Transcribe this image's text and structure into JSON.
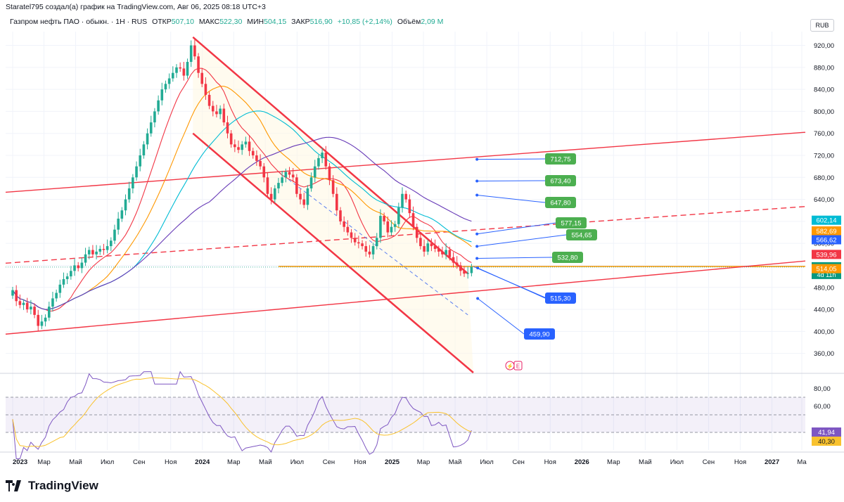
{
  "header": {
    "author": "Staratel795 создал(а) график на TradingView.com, Авг 06, 2025 08:18 UTC+3"
  },
  "info": {
    "symbol": "Газпром нефть ПАО · обыкн. · 1Н · RUS",
    "open_label": "ОТКР",
    "open": "507,10",
    "high_label": "МАКС",
    "high": "522,30",
    "low_label": "МИН",
    "low": "504,15",
    "close_label": "ЗАКР",
    "close": "516,90",
    "change": "+10,85 (+2,14%)",
    "volume_label": "Объём",
    "volume": "2,09 M"
  },
  "currency": "RUB",
  "brand": {
    "name": "TradingView"
  },
  "colors": {
    "up": "#22ab94",
    "down": "#f23645",
    "channel": "#f23645",
    "ma_red": "#f23645",
    "ma_orange": "#ff9800",
    "ma_cyan": "#00bcd4",
    "ma_blue": "#2962ff",
    "ma_purple": "#673ab7",
    "rsi": "#7e57c2",
    "rsi_ma": "#f9c22e",
    "target_green": "#4caf50",
    "target_blue": "#2962ff",
    "price_tag": "#089981"
  },
  "chart_data": {
    "type": "candlestick",
    "title": "Газпром нефть ПАО · обыкн. · 1Н · RUS",
    "y_range": [
      325,
      945
    ],
    "y_ticks": [
      "920,00",
      "880,00",
      "840,00",
      "800,00",
      "760,00",
      "720,00",
      "680,00",
      "640,00",
      "600,00",
      "560,00",
      "520,00",
      "480,00",
      "440,00",
      "400,00",
      "360,00"
    ],
    "y_tick_values": [
      920,
      880,
      840,
      800,
      760,
      720,
      680,
      640,
      600,
      560,
      520,
      480,
      440,
      400,
      360
    ],
    "x_labels": [
      "2023",
      "Мар",
      "Май",
      "Июл",
      "Сен",
      "Ноя",
      "2024",
      "Мар",
      "Май",
      "Июл",
      "Сен",
      "Ноя",
      "2025",
      "Мар",
      "Май",
      "Июл",
      "Сен",
      "Ноя",
      "2026",
      "Мар",
      "Май",
      "Июл",
      "Сен",
      "Ноя",
      "2027",
      "Ма"
    ],
    "x_label_bold": [
      "2023",
      "2024",
      "2025",
      "2026",
      "2027"
    ],
    "x_label_weeks": [
      0,
      8.6,
      17.3,
      26,
      34.7,
      43.4,
      52.1,
      60.7,
      69.4,
      78.1,
      86.8,
      95.4,
      104.2,
      112.8,
      121.5,
      130.2,
      138.9,
      147.6,
      156.3,
      165,
      173.7,
      182.4,
      191.1,
      199.8,
      208.5,
      216.7
    ],
    "price_levels": [
      {
        "label": "602,14",
        "value": 602.14,
        "color": "#00bcd4"
      },
      {
        "label": "582,69",
        "value": 582.69,
        "color": "#ff9800"
      },
      {
        "label": "566,62",
        "value": 566.62,
        "color": "#2962ff"
      },
      {
        "label": "539,96",
        "value": 539.96,
        "color": "#f23645"
      },
      {
        "label": "516,90",
        "value": 516.9,
        "color": "#089981",
        "sub": "4d 11h"
      },
      {
        "label": "514,05",
        "value": 514.05,
        "color": "#ff9800"
      }
    ],
    "targets": [
      {
        "label": "712,75",
        "value": 712.75,
        "kind": "green"
      },
      {
        "label": "673,40",
        "value": 673.4,
        "kind": "green"
      },
      {
        "label": "647,80",
        "value": 647.8,
        "kind": "green"
      },
      {
        "label": "577,15",
        "value": 577.15,
        "kind": "green"
      },
      {
        "label": "554,65",
        "value": 554.65,
        "kind": "green"
      },
      {
        "label": "532,80",
        "value": 532.8,
        "kind": "green"
      },
      {
        "label": "515,30",
        "value": 515.3,
        "kind": "blue"
      },
      {
        "label": "459,90",
        "value": 459.9,
        "kind": "blue"
      }
    ],
    "weekly_close": [
      475,
      455,
      448,
      452,
      440,
      445,
      430,
      410,
      418,
      425,
      445,
      460,
      470,
      485,
      495,
      500,
      510,
      520,
      515,
      525,
      540,
      548,
      540,
      545,
      550,
      548,
      555,
      565,
      585,
      605,
      620,
      640,
      660,
      680,
      700,
      720,
      740,
      760,
      780,
      800,
      820,
      840,
      850,
      860,
      870,
      880,
      878,
      865,
      890,
      920,
      900,
      870,
      850,
      830,
      810,
      800,
      795,
      805,
      780,
      760,
      740,
      735,
      730,
      740,
      745,
      728,
      720,
      710,
      700,
      680,
      650,
      640,
      660,
      670,
      680,
      690,
      685,
      680,
      650,
      640,
      630,
      660,
      680,
      700,
      715,
      725,
      700,
      675,
      650,
      620,
      600,
      590,
      580,
      570,
      562,
      560,
      555,
      545,
      540,
      555,
      570,
      610,
      600,
      580,
      590,
      595,
      625,
      650,
      640,
      615,
      590,
      570,
      555,
      545,
      560,
      555,
      550,
      545,
      540,
      548,
      535,
      525,
      520,
      510,
      505,
      506,
      516.9
    ],
    "rsi": {
      "range": [
        10,
        90
      ],
      "ticks": [
        "80,00",
        "60,00"
      ],
      "tick_values": [
        80,
        60
      ],
      "bands": [
        70,
        50,
        30
      ],
      "value_label": "41,94",
      "ma_label": "40,30"
    }
  }
}
